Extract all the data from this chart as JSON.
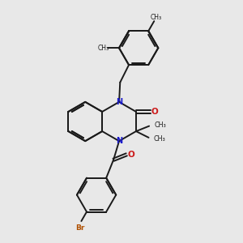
{
  "bg_color": "#e8e8e8",
  "bond_color": "#1a1a1a",
  "N_color": "#1a1acc",
  "O_color": "#cc1a1a",
  "Br_color": "#b05000",
  "lw": 1.4,
  "dbl_sep": 0.055,
  "figsize": [
    3.0,
    3.0
  ],
  "dpi": 100,
  "xlim": [
    0,
    10
  ],
  "ylim": [
    0,
    10
  ]
}
